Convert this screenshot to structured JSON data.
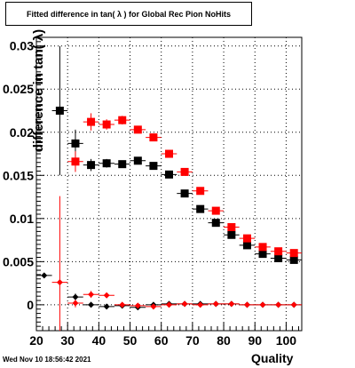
{
  "chart_data": {
    "type": "scatter",
    "title": "Fitted difference in tan( λ ) for Global Rec Pion NoHits",
    "xlabel": "Quality",
    "ylabel": "difference in tan( λ)",
    "xlim": [
      20,
      105
    ],
    "ylim": [
      -0.003,
      0.031
    ],
    "x_ticks": [
      20,
      30,
      40,
      50,
      60,
      70,
      80,
      90,
      100
    ],
    "y_ticks": [
      0,
      0.005,
      0.01,
      0.015,
      0.02,
      0.025,
      0.03
    ],
    "y_tick_labels": [
      "0",
      "0.005",
      "0.01",
      "0.015",
      "0.02",
      "0.025",
      "0.03"
    ],
    "grid": true,
    "series": [
      {
        "color": "#000000",
        "marker": "square",
        "points": [
          {
            "x": 27.5,
            "y": 0.0225,
            "yerr": 0.0075
          },
          {
            "x": 32.5,
            "y": 0.0187,
            "yerr": 0.0016
          },
          {
            "x": 37.5,
            "y": 0.0162,
            "yerr": 0.0007
          },
          {
            "x": 42.5,
            "y": 0.0164,
            "yerr": 0.0005
          },
          {
            "x": 47.5,
            "y": 0.0163,
            "yerr": 0.0004
          },
          {
            "x": 52.5,
            "y": 0.0167,
            "yerr": 0.0004
          },
          {
            "x": 57.5,
            "y": 0.0161,
            "yerr": 0.0004
          },
          {
            "x": 62.5,
            "y": 0.0151,
            "yerr": 0.0003
          },
          {
            "x": 67.5,
            "y": 0.0129,
            "yerr": 0.0003
          },
          {
            "x": 72.5,
            "y": 0.0111,
            "yerr": 0.0003
          },
          {
            "x": 77.5,
            "y": 0.0095,
            "yerr": 0.0003
          },
          {
            "x": 82.5,
            "y": 0.0081,
            "yerr": 0.0003
          },
          {
            "x": 87.5,
            "y": 0.0069,
            "yerr": 0.0003
          },
          {
            "x": 92.5,
            "y": 0.0059,
            "yerr": 0.0003
          },
          {
            "x": 97.5,
            "y": 0.0054,
            "yerr": 0.0003
          },
          {
            "x": 102.5,
            "y": 0.0052,
            "yerr": 0.0003
          }
        ]
      },
      {
        "color": "#ff0000",
        "marker": "square",
        "points": [
          {
            "x": 32.5,
            "y": 0.0166,
            "yerr": 0.0012
          },
          {
            "x": 37.5,
            "y": 0.0212,
            "yerr": 0.001
          },
          {
            "x": 42.5,
            "y": 0.0209,
            "yerr": 0.0006
          },
          {
            "x": 47.5,
            "y": 0.0214,
            "yerr": 0.0005
          },
          {
            "x": 52.5,
            "y": 0.0203,
            "yerr": 0.0004
          },
          {
            "x": 57.5,
            "y": 0.0194,
            "yerr": 0.0004
          },
          {
            "x": 62.5,
            "y": 0.0175,
            "yerr": 0.0004
          },
          {
            "x": 67.5,
            "y": 0.0154,
            "yerr": 0.0004
          },
          {
            "x": 72.5,
            "y": 0.0132,
            "yerr": 0.0003
          },
          {
            "x": 77.5,
            "y": 0.0109,
            "yerr": 0.0003
          },
          {
            "x": 82.5,
            "y": 0.009,
            "yerr": 0.0003
          },
          {
            "x": 87.5,
            "y": 0.0077,
            "yerr": 0.0003
          },
          {
            "x": 92.5,
            "y": 0.0067,
            "yerr": 0.0003
          },
          {
            "x": 97.5,
            "y": 0.0062,
            "yerr": 0.0003
          },
          {
            "x": 102.5,
            "y": 0.006,
            "yerr": 0.0003
          }
        ]
      },
      {
        "color": "#000000",
        "marker": "diamond",
        "points": [
          {
            "x": 22.5,
            "y": 0.0034,
            "yerr": 0.0
          },
          {
            "x": 32.5,
            "y": 0.0009,
            "yerr": 0.0004
          },
          {
            "x": 37.5,
            "y": 0.0,
            "yerr": 0.0003
          },
          {
            "x": 42.5,
            "y": -0.0002,
            "yerr": 0.0002
          },
          {
            "x": 47.5,
            "y": -0.0001,
            "yerr": 0.0001
          },
          {
            "x": 52.5,
            "y": -0.0003,
            "yerr": 0.0001
          },
          {
            "x": 57.5,
            "y": 0.0,
            "yerr": 0.0001
          },
          {
            "x": 62.5,
            "y": 0.0001,
            "yerr": 0.0001
          },
          {
            "x": 67.5,
            "y": 0.0001,
            "yerr": 0.0001
          },
          {
            "x": 72.5,
            "y": 0.0001,
            "yerr": 0.0001
          },
          {
            "x": 77.5,
            "y": 0.0001,
            "yerr": 0.0001
          },
          {
            "x": 82.5,
            "y": 0.0001,
            "yerr": 0.0001
          },
          {
            "x": 87.5,
            "y": 0.0,
            "yerr": 0.0001
          },
          {
            "x": 92.5,
            "y": 0.0,
            "yerr": 0.0001
          },
          {
            "x": 97.5,
            "y": 0.0,
            "yerr": 0.0001
          },
          {
            "x": 102.5,
            "y": 0.0,
            "yerr": 0.0001
          }
        ]
      },
      {
        "color": "#ff0000",
        "marker": "diamond",
        "points": [
          {
            "x": 27.5,
            "y": 0.0026,
            "yerr": 0.01
          },
          {
            "x": 32.5,
            "y": 0.0002,
            "yerr": 0.0005
          },
          {
            "x": 37.5,
            "y": 0.0012,
            "yerr": 0.0004
          },
          {
            "x": 42.5,
            "y": 0.0011,
            "yerr": 0.0002
          },
          {
            "x": 47.5,
            "y": 0.0,
            "yerr": 0.0001
          },
          {
            "x": 52.5,
            "y": -0.0001,
            "yerr": 0.0001
          },
          {
            "x": 57.5,
            "y": -0.0002,
            "yerr": 0.0001
          },
          {
            "x": 62.5,
            "y": 0.0,
            "yerr": 0.0001
          },
          {
            "x": 67.5,
            "y": 0.0001,
            "yerr": 0.0001
          },
          {
            "x": 72.5,
            "y": 0.0,
            "yerr": 0.0001
          },
          {
            "x": 77.5,
            "y": 0.0001,
            "yerr": 0.0001
          },
          {
            "x": 82.5,
            "y": 0.0001,
            "yerr": 0.0001
          },
          {
            "x": 87.5,
            "y": 0.0,
            "yerr": 0.0001
          },
          {
            "x": 92.5,
            "y": 0.0,
            "yerr": 0.0001
          },
          {
            "x": 97.5,
            "y": 0.0,
            "yerr": 0.0001
          },
          {
            "x": 102.5,
            "y": 0.0,
            "yerr": 0.0001
          }
        ]
      }
    ]
  },
  "footer": {
    "timestamp": "Wed Nov 10 18:56:42 2021"
  }
}
